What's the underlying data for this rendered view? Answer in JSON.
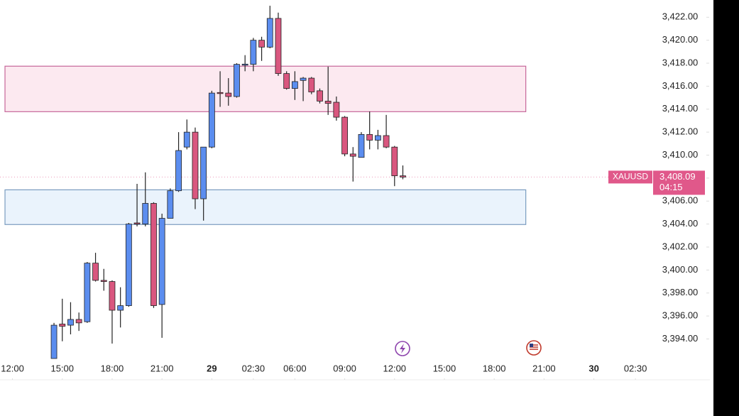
{
  "chart_data": {
    "type": "candlestick",
    "x": [
      0,
      1,
      2,
      3,
      4,
      5,
      6,
      7,
      8,
      9,
      10,
      11,
      12,
      13,
      14,
      15,
      16,
      17,
      18,
      19,
      20,
      21,
      22,
      23,
      24,
      25,
      26,
      27,
      28,
      29,
      30,
      31,
      32,
      33,
      34,
      35,
      36,
      37,
      38,
      39,
      40,
      41,
      42
    ],
    "open": [
      3392.3,
      3395.3,
      3395.2,
      3395.7,
      3395.5,
      3400.6,
      3399.1,
      3399.0,
      3396.5,
      3396.9,
      3404.1,
      3404.0,
      3405.8,
      3397.0,
      3404.5,
      3406.9,
      3410.7,
      3412.0,
      3406.2,
      3410.7,
      3415.45,
      3415.4,
      3415.1,
      3417.86,
      3417.9,
      3420.0,
      3419.4,
      3421.9,
      3417.1,
      3415.8,
      3416.5,
      3416.7,
      3415.6,
      3414.7,
      3414.6,
      3413.3,
      3410.1,
      3409.8,
      3411.8,
      3411.3,
      3411.7,
      3410.7,
      3408.2
    ],
    "high": [
      3395.4,
      3397.5,
      3397.2,
      3396.3,
      3400.7,
      3401.5,
      3400.1,
      3399.1,
      3398.5,
      3404.1,
      3407.5,
      3408.5,
      3405.9,
      3404.9,
      3407.1,
      3412.0,
      3413.1,
      3412.4,
      3410.7,
      3415.6,
      3417.3,
      3416.7,
      3418.0,
      3418.7,
      3420.2,
      3420.3,
      3423.0,
      3422.4,
      3417.3,
      3417.3,
      3416.8,
      3416.8,
      3415.8,
      3417.7,
      3415.1,
      3413.4,
      3410.7,
      3412.0,
      3413.8,
      3412.2,
      3413.5,
      3410.8,
      3409.1
    ],
    "low": [
      3392.3,
      3393.8,
      3394.4,
      3394.7,
      3395.4,
      3399.0,
      3398.2,
      3393.6,
      3395.0,
      3396.8,
      3403.8,
      3403.8,
      3396.7,
      3394.1,
      3404.5,
      3406.8,
      3410.5,
      3405.3,
      3404.3,
      3410.6,
      3414.2,
      3414.3,
      3415.0,
      3417.3,
      3417.3,
      3418.2,
      3419.3,
      3416.9,
      3415.7,
      3414.8,
      3414.7,
      3415.3,
      3414.5,
      3413.5,
      3413.0,
      3409.9,
      3407.7,
      3409.8,
      3410.5,
      3410.5,
      3410.6,
      3407.3,
      3407.9
    ],
    "close": [
      3395.2,
      3395.1,
      3395.7,
      3395.4,
      3400.6,
      3399.1,
      3399.0,
      3396.5,
      3396.9,
      3404.0,
      3404.0,
      3405.8,
      3396.9,
      3404.5,
      3406.9,
      3410.4,
      3412.0,
      3406.2,
      3410.7,
      3415.4,
      3415.4,
      3415.1,
      3417.9,
      3417.92,
      3420.0,
      3419.4,
      3421.9,
      3417.1,
      3415.8,
      3416.4,
      3416.7,
      3415.5,
      3414.7,
      3414.5,
      3413.3,
      3410.1,
      3409.9,
      3411.8,
      3411.3,
      3411.7,
      3410.7,
      3408.2,
      3408.09
    ],
    "up_color": "#5b8def",
    "down_color": "#d9577f",
    "xlim": [
      -6.5,
      71.7
    ],
    "xticks": [
      {
        "value": -5,
        "label": "12:00"
      },
      {
        "value": 1,
        "label": "15:00"
      },
      {
        "value": 7,
        "label": "18:00"
      },
      {
        "value": 13,
        "label": "21:00"
      },
      {
        "value": 19,
        "label": "29"
      },
      {
        "value": 24,
        "label": "02:30"
      },
      {
        "value": 29,
        "label": "06:00"
      },
      {
        "value": 35,
        "label": "09:00"
      },
      {
        "value": 41,
        "label": "12:00"
      },
      {
        "value": 47,
        "label": "15:00"
      },
      {
        "value": 53,
        "label": "18:00"
      },
      {
        "value": 59,
        "label": "21:00"
      },
      {
        "value": 65,
        "label": "30"
      },
      {
        "value": 70,
        "label": "02:30"
      }
    ],
    "ylim": [
      3392.3,
      3423.5
    ],
    "yticks": [
      {
        "value": 3394,
        "label": "3,394.00"
      },
      {
        "value": 3396,
        "label": "3,396.00"
      },
      {
        "value": 3398,
        "label": "3,398.00"
      },
      {
        "value": 3400,
        "label": "3,400.00"
      },
      {
        "value": 3402,
        "label": "3,402.00"
      },
      {
        "value": 3404,
        "label": "3,404.00"
      },
      {
        "value": 3406,
        "label": "3,406.00"
      },
      {
        "value": 3408,
        "label": "3,408.00"
      },
      {
        "value": 3410,
        "label": "3,410.00"
      },
      {
        "value": 3412,
        "label": "3,412.00"
      },
      {
        "value": 3414,
        "label": "3,414.00"
      },
      {
        "value": 3416,
        "label": "3,416.00"
      },
      {
        "value": 3418,
        "label": "3,418.00"
      },
      {
        "value": 3420,
        "label": "3,420.00"
      },
      {
        "value": 3422,
        "label": "3,422.00"
      }
    ],
    "zones": [
      {
        "xlim": [
          -5.9,
          56.8
        ],
        "ylim": [
          3413.78,
          3417.74
        ],
        "color": "#fce9f0",
        "edge": "#c6679a"
      },
      {
        "xlim": [
          -5.9,
          56.8
        ],
        "ylim": [
          3403.96,
          3406.98
        ],
        "color": "#eaf3fc",
        "edge": "#7a9cc0"
      }
    ],
    "last_price": {
      "symbol": "XAUUSD",
      "value": 3408.09,
      "label": "3,408.09",
      "countdown": "04:15",
      "color": "#e0588a"
    }
  }
}
